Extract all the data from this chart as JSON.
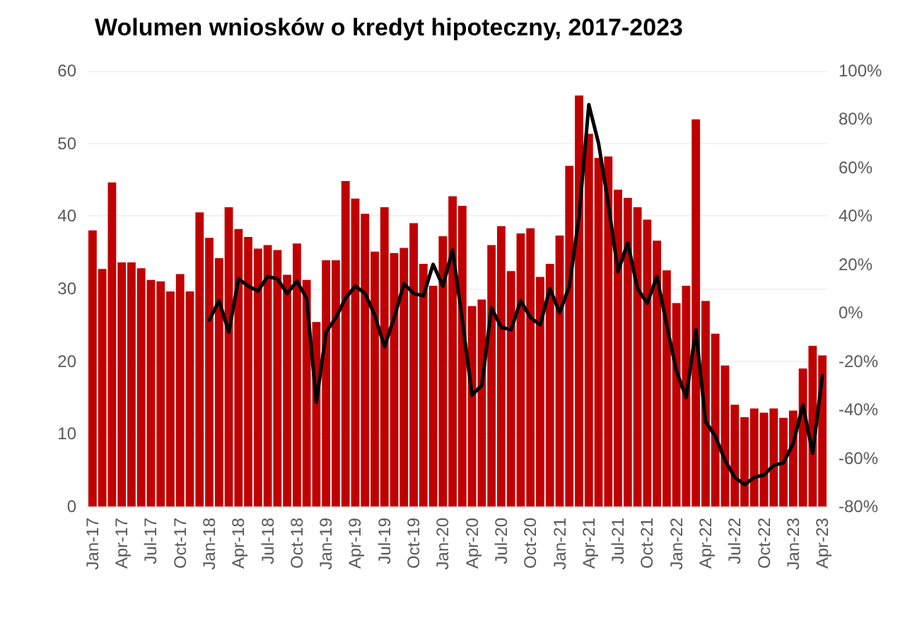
{
  "chart_data": {
    "type": "bar",
    "title": "Wolumen wniosków o kredyt hipoteczny, 2017-2023",
    "categories": [
      "Jan-17",
      null,
      null,
      "Apr-17",
      null,
      null,
      "Jul-17",
      null,
      null,
      "Oct-17",
      null,
      null,
      "Jan-18",
      null,
      null,
      "Apr-18",
      null,
      null,
      "Jul-18",
      null,
      null,
      "Oct-18",
      null,
      null,
      "Jan-19",
      null,
      null,
      "Apr-19",
      null,
      null,
      "Jul-19",
      null,
      null,
      "Oct-19",
      null,
      null,
      "Jan-20",
      null,
      null,
      "Apr-20",
      null,
      null,
      "Jul-20",
      null,
      null,
      "Oct-20",
      null,
      null,
      "Jan-21",
      null,
      null,
      "Apr-21",
      null,
      null,
      "Jul-21",
      null,
      null,
      "Oct-21",
      null,
      null,
      "Jan-22",
      null,
      null,
      "Apr-22",
      null,
      null,
      "Jul-22",
      null,
      null,
      "Oct-22",
      null,
      null,
      "Jan-23",
      null,
      null,
      "Apr-23"
    ],
    "series": [
      {
        "color": "#c00000",
        "values": [
          38.0,
          32.7,
          44.6,
          33.6,
          33.6,
          32.8,
          31.2,
          31.0,
          29.6,
          32.0,
          29.6,
          40.5,
          37.0,
          34.2,
          41.2,
          38.2,
          37.1,
          35.5,
          36.0,
          35.3,
          31.9,
          36.2,
          31.2,
          25.4,
          33.9,
          33.9,
          44.8,
          42.4,
          40.3,
          35.1,
          41.2,
          34.9,
          35.6,
          39.0,
          33.4,
          30.4,
          37.2,
          42.7,
          41.4,
          27.6,
          28.5,
          36.0,
          38.6,
          32.4,
          37.6,
          38.3,
          31.6,
          33.4,
          37.3,
          46.9,
          56.6,
          51.3,
          48.0,
          48.2,
          43.6,
          42.5,
          41.2,
          39.5,
          36.6,
          32.5,
          28.0,
          30.4,
          53.3,
          28.3,
          23.8,
          19.4,
          14.0,
          12.3,
          13.5,
          12.9,
          13.5,
          12.2,
          13.2,
          19.0,
          22.1,
          20.8
        ]
      },
      {
        "type": "line",
        "axis": "y2",
        "color": "#000000",
        "values": [
          null,
          null,
          null,
          null,
          null,
          null,
          null,
          null,
          null,
          null,
          null,
          null,
          -3,
          5,
          -8,
          14,
          11,
          9,
          15,
          14,
          8,
          13,
          6,
          -37,
          -8,
          -2,
          6,
          11,
          8,
          -1,
          -14,
          -2,
          12,
          8,
          7,
          20,
          11,
          26,
          -3,
          -34,
          -30,
          2,
          -6,
          -7,
          5,
          -2,
          -5,
          10,
          0,
          11,
          40,
          86,
          70,
          45,
          17,
          29,
          10,
          4,
          15,
          -5,
          -24,
          -35,
          -7,
          -45,
          -51,
          -61,
          -68,
          -71,
          -68,
          -67,
          -63,
          -62,
          -54,
          -38,
          -58,
          -26
        ]
      }
    ],
    "ylim": [
      0,
      60
    ],
    "yticks": [
      0,
      10,
      20,
      30,
      40,
      50,
      60
    ],
    "y2lim": [
      -80,
      100
    ],
    "y2ticks": [
      {
        "value": -80,
        "label": "-80%"
      },
      {
        "value": -60,
        "label": "-60%"
      },
      {
        "value": -40,
        "label": "-40%"
      },
      {
        "value": -20,
        "label": "-20%"
      },
      {
        "value": 0,
        "label": "0%"
      },
      {
        "value": 20,
        "label": "20%"
      },
      {
        "value": 40,
        "label": "40%"
      },
      {
        "value": 60,
        "label": "60%"
      },
      {
        "value": 80,
        "label": "80%"
      },
      {
        "value": 100,
        "label": "100%"
      }
    ],
    "grid": "y",
    "marker": "none",
    "line_style": "solid"
  }
}
